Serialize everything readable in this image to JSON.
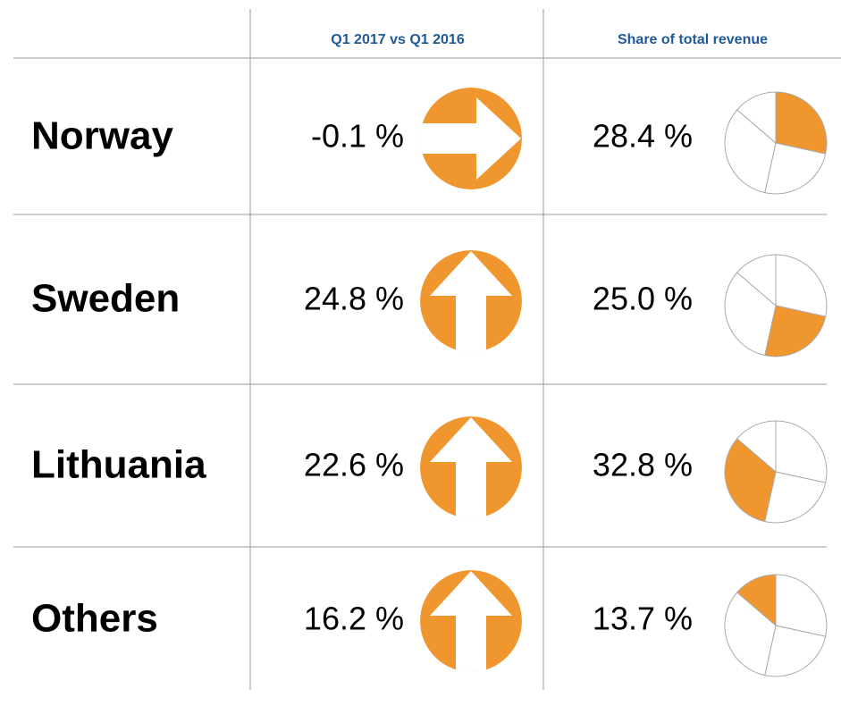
{
  "table": {
    "headers": [
      "Q1 2017 vs Q1 2016",
      "Share of total revenue"
    ],
    "highlight_color": "#f0962e",
    "rows": [
      {
        "country": "Norway",
        "change": -0.1,
        "change_label": "-0.1 %",
        "arrow": "right",
        "share": 28.4,
        "share_label": "28.4 %"
      },
      {
        "country": "Sweden",
        "change": 24.8,
        "change_label": "24.8 %",
        "arrow": "up",
        "share": 25.0,
        "share_label": "25.0 %"
      },
      {
        "country": "Lithuania",
        "change": 22.6,
        "change_label": "22.6 %",
        "arrow": "up",
        "share": 32.8,
        "share_label": "32.8 %"
      },
      {
        "country": "Others",
        "change": 16.2,
        "change_label": "16.2 %",
        "arrow": "up",
        "share": 13.7,
        "share_label": "13.7 %"
      }
    ]
  }
}
